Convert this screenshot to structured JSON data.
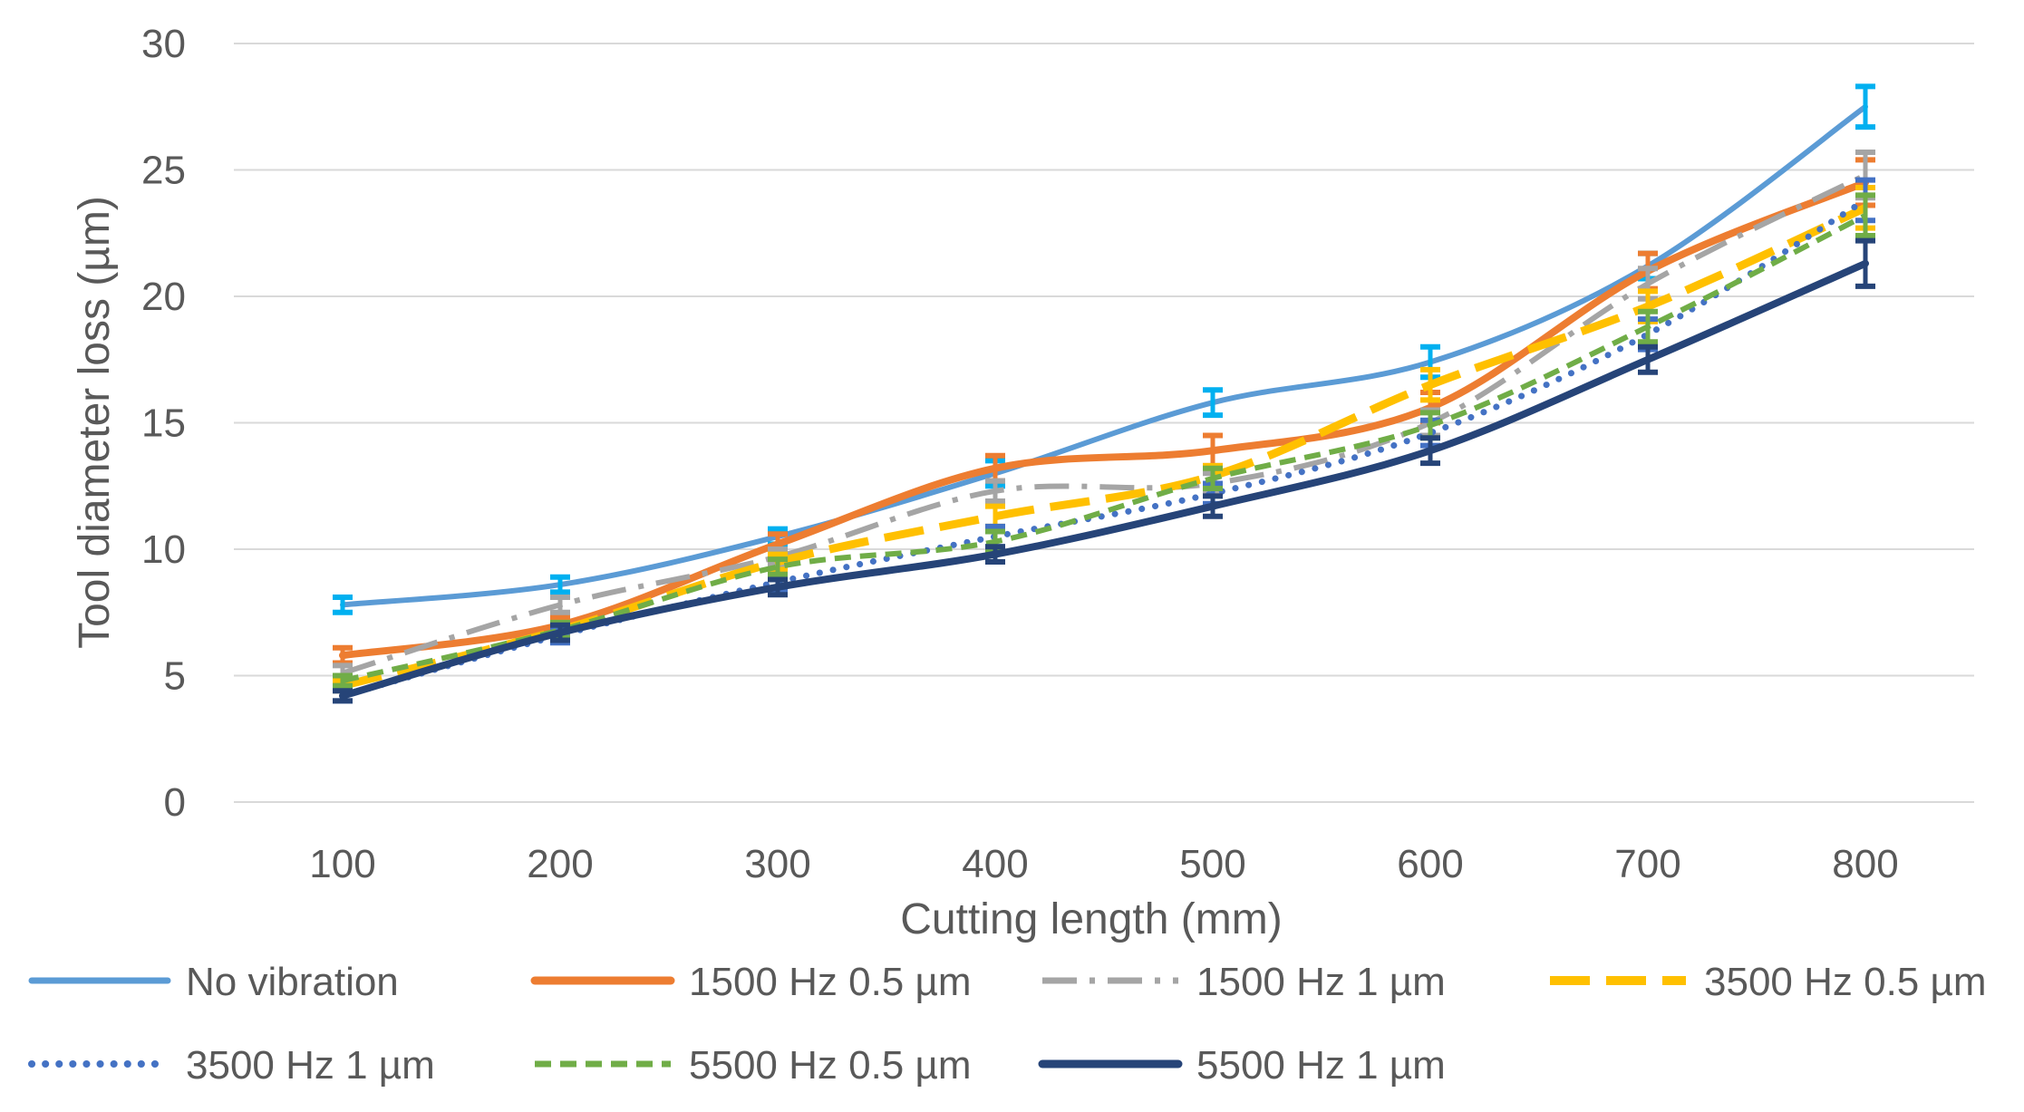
{
  "chart_data": {
    "type": "line",
    "title": "",
    "xlabel": "Cutting length (mm)",
    "ylabel": "Tool diameter loss (µm)",
    "x": [
      100,
      200,
      300,
      400,
      500,
      600,
      700,
      800
    ],
    "x_tick_labels": [
      "100",
      "200",
      "300",
      "400",
      "500",
      "600",
      "700",
      "800"
    ],
    "ylim": [
      0,
      30
    ],
    "y_ticks": [
      0,
      5,
      10,
      15,
      20,
      25,
      30
    ],
    "grid": true,
    "legend_position": "bottom",
    "series": [
      {
        "name": "No vibration",
        "color": "#5B9BD5",
        "error_color": "#00B0F0",
        "style": "solid",
        "values": [
          7.8,
          8.6,
          10.5,
          13.0,
          15.8,
          17.4,
          21.2,
          27.5
        ],
        "errors": [
          0.3,
          0.3,
          0.3,
          0.5,
          0.5,
          0.6,
          0.5,
          0.8
        ]
      },
      {
        "name": "1500 Hz 0.5 µm",
        "color": "#ED7D31",
        "style": "solid-thick",
        "values": [
          5.8,
          7.0,
          10.2,
          13.2,
          13.9,
          15.6,
          21.0,
          24.5
        ],
        "errors": [
          0.3,
          0.3,
          0.4,
          0.5,
          0.6,
          0.6,
          0.7,
          0.9
        ]
      },
      {
        "name": "1500 Hz 1 µm",
        "color": "#A5A5A5",
        "style": "dashdot",
        "values": [
          5.1,
          7.8,
          9.7,
          12.3,
          12.6,
          15.0,
          20.5,
          24.8
        ],
        "errors": [
          0.3,
          0.3,
          0.3,
          0.4,
          0.4,
          0.5,
          0.6,
          0.9
        ]
      },
      {
        "name": "3500 Hz 0.5 µm",
        "color": "#FFC000",
        "style": "longdash",
        "values": [
          4.6,
          6.8,
          9.5,
          11.3,
          12.9,
          16.5,
          19.6,
          23.5
        ],
        "errors": [
          0.2,
          0.3,
          0.3,
          0.4,
          0.4,
          0.6,
          0.6,
          0.8
        ]
      },
      {
        "name": "3500 Hz 1 µm",
        "color": "#4472C4",
        "style": "dotted",
        "values": [
          4.2,
          6.6,
          8.7,
          10.5,
          12.2,
          14.6,
          18.5,
          23.8
        ],
        "errors": [
          0.2,
          0.3,
          0.3,
          0.4,
          0.4,
          0.5,
          0.6,
          0.8
        ]
      },
      {
        "name": "5500 Hz 0.5 µm",
        "color": "#70AD47",
        "style": "dashed",
        "values": [
          4.8,
          6.8,
          9.3,
          10.3,
          12.8,
          14.9,
          18.8,
          23.2
        ],
        "errors": [
          0.2,
          0.3,
          0.3,
          0.4,
          0.4,
          0.5,
          0.6,
          0.8
        ]
      },
      {
        "name": "5500 Hz 1 µm",
        "color": "#264478",
        "style": "solid-thick",
        "values": [
          4.2,
          6.7,
          8.5,
          9.8,
          11.7,
          13.9,
          17.5,
          21.3
        ],
        "errors": [
          0.2,
          0.3,
          0.3,
          0.3,
          0.4,
          0.5,
          0.5,
          0.9
        ]
      }
    ]
  }
}
